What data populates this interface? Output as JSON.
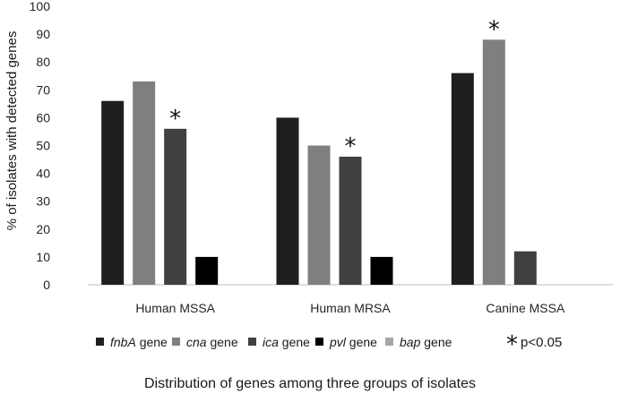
{
  "chart_data": {
    "type": "bar",
    "title": "",
    "xlabel": "Distribution of genes among three groups of isolates",
    "ylabel": "% of isolates with detected  genes",
    "ylim": [
      0,
      100
    ],
    "yticks": [
      0,
      10,
      20,
      30,
      40,
      50,
      60,
      70,
      80,
      90,
      100
    ],
    "categories": [
      "Human MSSA",
      "Human MRSA",
      "Canine MSSA"
    ],
    "series": [
      {
        "name": "fnbA",
        "label_italic": "fnbA",
        "label_suffix": " gene",
        "color": "#1f1f1f",
        "values": [
          66,
          60,
          76
        ]
      },
      {
        "name": "cna",
        "label_italic": "cna",
        "label_suffix": " gene",
        "color": "#7f7f7f",
        "values": [
          73,
          50,
          88
        ]
      },
      {
        "name": "ica",
        "label_italic": "ica",
        "label_suffix": " gene",
        "color": "#404040",
        "values": [
          56,
          46,
          12
        ]
      },
      {
        "name": "pvl",
        "label_italic": "pvl",
        "label_suffix": " gene",
        "color": "#000000",
        "values": [
          10,
          10,
          0
        ]
      },
      {
        "name": "bap",
        "label_italic": "bap",
        "label_suffix": " gene",
        "color": "#a6a6a6",
        "values": [
          0,
          0,
          0
        ]
      }
    ],
    "significance": [
      {
        "category": 0,
        "series": "ica",
        "marker": "*"
      },
      {
        "category": 1,
        "series": "ica",
        "marker": "*"
      },
      {
        "category": 2,
        "series": "cna",
        "marker": "*"
      }
    ],
    "legend_position": "bottom",
    "significance_note": {
      "marker": "*",
      "text": "p<0.05"
    },
    "grid": false
  }
}
